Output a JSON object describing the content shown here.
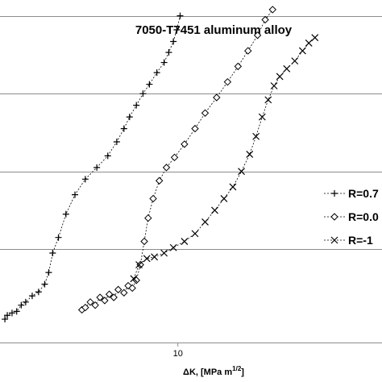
{
  "chart_data": {
    "type": "scatter",
    "title": "7050-T7451 aluminum alloy",
    "xlabel_main": "ΔK, [MPa m",
    "xlabel_sup": "1/2",
    "xlabel_end": "]",
    "ylabel": "",
    "x_scale": "log",
    "xlim": [
      4.5,
      25
    ],
    "ylim": [
      -9.2,
      -4.9
    ],
    "x_ticks": [
      10
    ],
    "x_tick_labels": [
      "10"
    ],
    "y_gridlines": [
      -8,
      -7,
      -6,
      -5
    ],
    "grid": true,
    "legend_position": "right",
    "series": [
      {
        "name": "R=0.7",
        "marker": "plus",
        "points": [
          [
            4.6,
            -8.9
          ],
          [
            4.65,
            -8.85
          ],
          [
            4.75,
            -8.82
          ],
          [
            4.85,
            -8.8
          ],
          [
            4.95,
            -8.72
          ],
          [
            5.05,
            -8.68
          ],
          [
            5.2,
            -8.6
          ],
          [
            5.35,
            -8.55
          ],
          [
            5.5,
            -8.45
          ],
          [
            5.6,
            -8.3
          ],
          [
            5.7,
            -8.05
          ],
          [
            5.85,
            -7.85
          ],
          [
            6.05,
            -7.55
          ],
          [
            6.3,
            -7.3
          ],
          [
            6.6,
            -7.1
          ],
          [
            6.95,
            -6.95
          ],
          [
            7.3,
            -6.8
          ],
          [
            7.6,
            -6.62
          ],
          [
            7.85,
            -6.45
          ],
          [
            8.05,
            -6.3
          ],
          [
            8.3,
            -6.15
          ],
          [
            8.55,
            -6.0
          ],
          [
            8.8,
            -5.88
          ],
          [
            9.1,
            -5.73
          ],
          [
            9.4,
            -5.6
          ],
          [
            9.6,
            -5.47
          ],
          [
            9.8,
            -5.33
          ],
          [
            9.95,
            -5.18
          ],
          [
            10.1,
            -5.0
          ]
        ]
      },
      {
        "name": "R=0.0",
        "marker": "diamond",
        "points": [
          [
            6.5,
            -8.78
          ],
          [
            6.6,
            -8.75
          ],
          [
            6.75,
            -8.68
          ],
          [
            6.9,
            -8.72
          ],
          [
            7.05,
            -8.62
          ],
          [
            7.2,
            -8.66
          ],
          [
            7.35,
            -8.58
          ],
          [
            7.5,
            -8.62
          ],
          [
            7.65,
            -8.52
          ],
          [
            7.85,
            -8.56
          ],
          [
            8.0,
            -8.47
          ],
          [
            8.15,
            -8.5
          ],
          [
            8.3,
            -8.4
          ],
          [
            8.45,
            -8.2
          ],
          [
            8.6,
            -7.9
          ],
          [
            8.75,
            -7.6
          ],
          [
            8.95,
            -7.35
          ],
          [
            9.2,
            -7.12
          ],
          [
            9.5,
            -6.95
          ],
          [
            9.85,
            -6.82
          ],
          [
            10.3,
            -6.65
          ],
          [
            10.8,
            -6.45
          ],
          [
            11.3,
            -6.25
          ],
          [
            11.9,
            -6.05
          ],
          [
            12.5,
            -5.85
          ],
          [
            13.1,
            -5.65
          ],
          [
            13.7,
            -5.45
          ],
          [
            14.3,
            -5.25
          ],
          [
            14.8,
            -5.05
          ],
          [
            15.3,
            -4.92
          ]
        ]
      },
      {
        "name": "R=-1",
        "marker": "x",
        "points": [
          [
            8.2,
            -8.38
          ],
          [
            8.4,
            -8.2
          ],
          [
            8.7,
            -8.12
          ],
          [
            9.0,
            -8.1
          ],
          [
            9.4,
            -8.05
          ],
          [
            9.8,
            -7.98
          ],
          [
            10.3,
            -7.9
          ],
          [
            10.8,
            -7.8
          ],
          [
            11.3,
            -7.65
          ],
          [
            11.8,
            -7.5
          ],
          [
            12.3,
            -7.35
          ],
          [
            12.8,
            -7.2
          ],
          [
            13.3,
            -7.0
          ],
          [
            13.8,
            -6.78
          ],
          [
            14.2,
            -6.55
          ],
          [
            14.6,
            -6.3
          ],
          [
            15.0,
            -6.08
          ],
          [
            15.4,
            -5.9
          ],
          [
            15.8,
            -5.78
          ],
          [
            16.3,
            -5.68
          ],
          [
            16.9,
            -5.58
          ],
          [
            17.5,
            -5.45
          ],
          [
            18.0,
            -5.35
          ],
          [
            18.5,
            -5.28
          ]
        ]
      }
    ]
  }
}
